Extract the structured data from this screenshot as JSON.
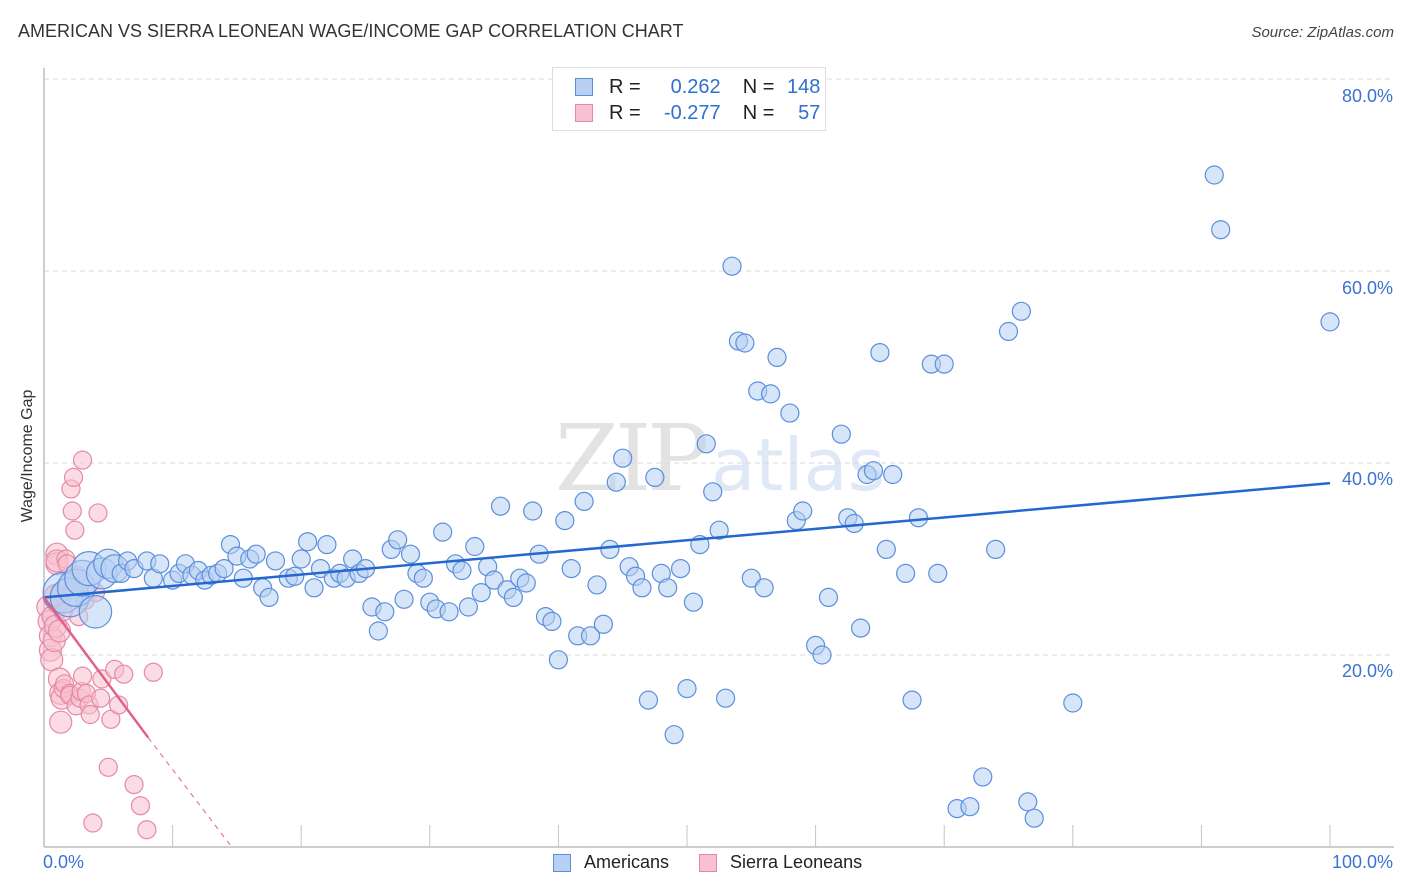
{
  "header": {
    "title": "AMERICAN VS SIERRA LEONEAN WAGE/INCOME GAP CORRELATION CHART",
    "source": "Source: ZipAtlas.com"
  },
  "legend_top": {
    "rows": [
      {
        "swatch": "blue",
        "r_label": "R =",
        "r_value": "0.262",
        "n_label": "N =",
        "n_value": "148"
      },
      {
        "swatch": "pink",
        "r_label": "R =",
        "r_value": "-0.277",
        "n_label": "N =",
        "n_value": "57"
      }
    ]
  },
  "legend_bottom": {
    "items": [
      {
        "label": "Americans",
        "swatch": "blue"
      },
      {
        "label": "Sierra Leoneans",
        "swatch": "pink"
      }
    ]
  },
  "axes": {
    "ylabel": "Wage/Income Gap",
    "yticks": [
      "80.0%",
      "60.0%",
      "40.0%",
      "20.0%"
    ],
    "xticks": {
      "left": "0.0%",
      "right": "100.0%"
    }
  },
  "watermark": {
    "zip": "ZIP",
    "atlas": "atlas"
  },
  "colors": {
    "blue_fill": "#b7d0f3",
    "blue_stroke": "#5b8fdc",
    "blue_line": "#2468cf",
    "pink_fill": "#f8c0d0",
    "pink_stroke": "#e58aa6",
    "pink_line": "#e0608a",
    "tick_label": "#3b73d1"
  },
  "chart_data": {
    "type": "scatter",
    "title": "AMERICAN VS SIERRA LEONEAN WAGE/INCOME GAP CORRELATION CHART",
    "xlabel": "",
    "ylabel": "Wage/Income Gap",
    "xlim": [
      0,
      100
    ],
    "ylim": [
      0,
      83
    ],
    "x_unit": "%",
    "y_unit": "%",
    "grid": "horizontal dashed at 20,40,60,80",
    "legend_position": "bottom center + stats box top center",
    "series": [
      {
        "name": "Americans",
        "color": "#b7d0f3",
        "R": 0.262,
        "N": 148,
        "trend": {
          "x": [
            0,
            100
          ],
          "y": [
            26.0,
            37.9
          ]
        },
        "points": [
          [
            1.5,
            26.5
          ],
          [
            2,
            26
          ],
          [
            2.5,
            27
          ],
          [
            3,
            28
          ],
          [
            3.5,
            29
          ],
          [
            4,
            24.5
          ],
          [
            4.5,
            28.5
          ],
          [
            5,
            29.5
          ],
          [
            5.5,
            29
          ],
          [
            6,
            28.5
          ],
          [
            6.5,
            29.8
          ],
          [
            7,
            29
          ],
          [
            8,
            29.8
          ],
          [
            8.5,
            28
          ],
          [
            9,
            29.5
          ],
          [
            10,
            27.8
          ],
          [
            10.5,
            28.5
          ],
          [
            11,
            29.5
          ],
          [
            11.5,
            28.3
          ],
          [
            12,
            28.8
          ],
          [
            12.5,
            27.8
          ],
          [
            13,
            28.3
          ],
          [
            13.5,
            28.5
          ],
          [
            14,
            29
          ],
          [
            14.5,
            31.5
          ],
          [
            15,
            30.3
          ],
          [
            15.5,
            28
          ],
          [
            16,
            30
          ],
          [
            16.5,
            30.5
          ],
          [
            17,
            27
          ],
          [
            17.5,
            26
          ],
          [
            18,
            29.8
          ],
          [
            19,
            28
          ],
          [
            19.5,
            28.2
          ],
          [
            20,
            30
          ],
          [
            20.5,
            31.8
          ],
          [
            21,
            27
          ],
          [
            21.5,
            29
          ],
          [
            22,
            31.5
          ],
          [
            22.5,
            28
          ],
          [
            23,
            28.5
          ],
          [
            23.5,
            28
          ],
          [
            24,
            30
          ],
          [
            24.5,
            28.5
          ],
          [
            25,
            29
          ],
          [
            25.5,
            25
          ],
          [
            26,
            22.5
          ],
          [
            26.5,
            24.5
          ],
          [
            27,
            31
          ],
          [
            27.5,
            32
          ],
          [
            28,
            25.8
          ],
          [
            28.5,
            30.5
          ],
          [
            29,
            28.5
          ],
          [
            29.5,
            28
          ],
          [
            30,
            25.5
          ],
          [
            30.5,
            24.8
          ],
          [
            31,
            32.8
          ],
          [
            31.5,
            24.5
          ],
          [
            32,
            29.5
          ],
          [
            32.5,
            28.8
          ],
          [
            33,
            25
          ],
          [
            33.5,
            31.3
          ],
          [
            34,
            26.5
          ],
          [
            34.5,
            29.2
          ],
          [
            35,
            27.8
          ],
          [
            35.5,
            35.5
          ],
          [
            36,
            26.8
          ],
          [
            36.5,
            26
          ],
          [
            37,
            28
          ],
          [
            37.5,
            27.5
          ],
          [
            38,
            35
          ],
          [
            38.5,
            30.5
          ],
          [
            39,
            24
          ],
          [
            39.5,
            23.5
          ],
          [
            40,
            19.5
          ],
          [
            40.5,
            34
          ],
          [
            41,
            29
          ],
          [
            41.5,
            22
          ],
          [
            42,
            36
          ],
          [
            42.5,
            22
          ],
          [
            43,
            27.3
          ],
          [
            43.5,
            23.2
          ],
          [
            44,
            31
          ],
          [
            44.5,
            38
          ],
          [
            45,
            40.5
          ],
          [
            45.5,
            29.2
          ],
          [
            46,
            28.2
          ],
          [
            46.5,
            27
          ],
          [
            47,
            15.3
          ],
          [
            47.5,
            38.5
          ],
          [
            48,
            28.5
          ],
          [
            48.5,
            27
          ],
          [
            49,
            11.7
          ],
          [
            49.5,
            29
          ],
          [
            50,
            16.5
          ],
          [
            50.5,
            25.5
          ],
          [
            51,
            31.5
          ],
          [
            51.5,
            42
          ],
          [
            52,
            37
          ],
          [
            52.5,
            33
          ],
          [
            53,
            15.5
          ],
          [
            53.5,
            60.5
          ],
          [
            54,
            52.7
          ],
          [
            54.5,
            52.5
          ],
          [
            55,
            28
          ],
          [
            55.5,
            47.5
          ],
          [
            56,
            27
          ],
          [
            56.5,
            47.2
          ],
          [
            57,
            51
          ],
          [
            58,
            45.2
          ],
          [
            58.5,
            34
          ],
          [
            59,
            35
          ],
          [
            60,
            21
          ],
          [
            60.5,
            20
          ],
          [
            61,
            26
          ],
          [
            62,
            43
          ],
          [
            62.5,
            34.3
          ],
          [
            63,
            33.7
          ],
          [
            63.5,
            22.8
          ],
          [
            64,
            38.8
          ],
          [
            64.5,
            39.2
          ],
          [
            65,
            51.5
          ],
          [
            65.5,
            31
          ],
          [
            66,
            38.8
          ],
          [
            67,
            28.5
          ],
          [
            67.5,
            15.3
          ],
          [
            68,
            34.3
          ],
          [
            69,
            50.3
          ],
          [
            69.5,
            28.5
          ],
          [
            70,
            50.3
          ],
          [
            71,
            4
          ],
          [
            72,
            4.2
          ],
          [
            73,
            7.3
          ],
          [
            74,
            31
          ],
          [
            75,
            53.7
          ],
          [
            76,
            55.8
          ],
          [
            76.5,
            4.7
          ],
          [
            77,
            3
          ],
          [
            80,
            15
          ],
          [
            91,
            70
          ],
          [
            91.5,
            64.3
          ],
          [
            100,
            54.7
          ]
        ]
      },
      {
        "name": "Sierra Leoneans",
        "color": "#f8c0d0",
        "R": -0.277,
        "N": 57,
        "trend": {
          "x": [
            0,
            8.1
          ],
          "y": [
            26.0,
            11.4
          ],
          "dashed_extension_to": [
            14.6,
            0
          ]
        },
        "points": [
          [
            0.3,
            25
          ],
          [
            0.4,
            23.5
          ],
          [
            0.5,
            22
          ],
          [
            0.5,
            20.5
          ],
          [
            0.6,
            19.5
          ],
          [
            0.7,
            24
          ],
          [
            0.8,
            26
          ],
          [
            0.8,
            21.5
          ],
          [
            0.9,
            23
          ],
          [
            1,
            30.5
          ],
          [
            1,
            29.5
          ],
          [
            1,
            29.8
          ],
          [
            1.1,
            25.5
          ],
          [
            1.2,
            22.5
          ],
          [
            1.2,
            17.5
          ],
          [
            1.3,
            16
          ],
          [
            1.3,
            13
          ],
          [
            1.4,
            15.5
          ],
          [
            1.5,
            16.5
          ],
          [
            1.6,
            17
          ],
          [
            1.7,
            30
          ],
          [
            1.8,
            29.5
          ],
          [
            1.9,
            27.5
          ],
          [
            2,
            16
          ],
          [
            2,
            15.8
          ],
          [
            2.1,
            37.3
          ],
          [
            2.2,
            35
          ],
          [
            2.3,
            38.5
          ],
          [
            2.4,
            33
          ],
          [
            2.5,
            14.7
          ],
          [
            2.6,
            28.3
          ],
          [
            2.7,
            24
          ],
          [
            2.8,
            15.5
          ],
          [
            2.9,
            16.2
          ],
          [
            3,
            40.3
          ],
          [
            3,
            17.8
          ],
          [
            3.2,
            25.7
          ],
          [
            3.3,
            16
          ],
          [
            3.5,
            14.8
          ],
          [
            3.6,
            13.8
          ],
          [
            4,
            26.5
          ],
          [
            4.2,
            34.8
          ],
          [
            4.4,
            15.5
          ],
          [
            4.5,
            17.5
          ],
          [
            5,
            8.3
          ],
          [
            5.2,
            13.3
          ],
          [
            5.5,
            18.5
          ],
          [
            5.8,
            14.8
          ],
          [
            6.2,
            18
          ],
          [
            7,
            6.5
          ],
          [
            7.5,
            4.3
          ],
          [
            8,
            1.8
          ],
          [
            8.5,
            18.2
          ],
          [
            3.8,
            2.5
          ],
          [
            1.5,
            24.5
          ],
          [
            2.2,
            26.8
          ],
          [
            0.9,
            26.2
          ]
        ]
      }
    ]
  }
}
